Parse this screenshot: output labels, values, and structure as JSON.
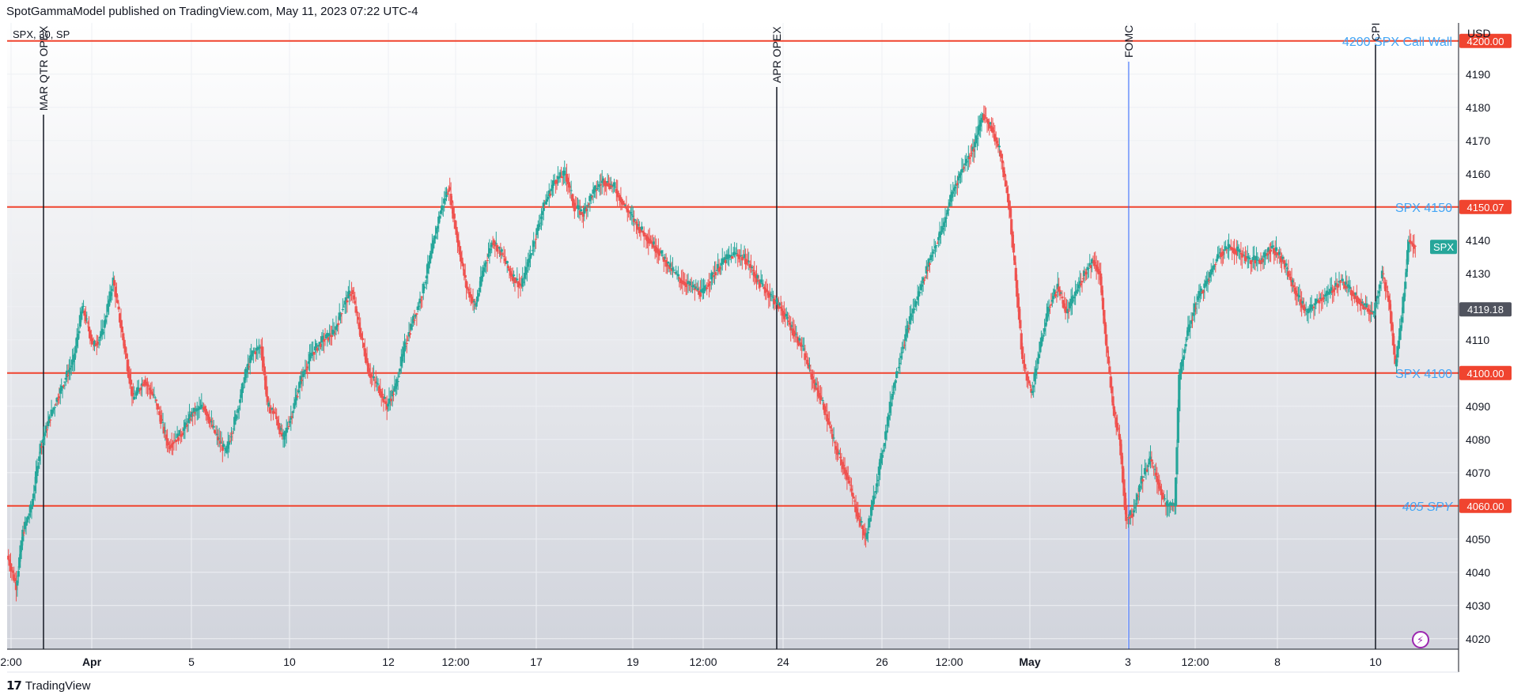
{
  "header": {
    "published": "SpotGammaModel published on TradingView.com, May 11, 2023 07:22 UTC-4"
  },
  "legend": {
    "symbol": "SPX, 30, SP"
  },
  "footer": {
    "brand": "TradingView"
  },
  "colors": {
    "up": "#26a69a",
    "down": "#ef5350",
    "level": "#f0442f",
    "label_blue": "#2196f3",
    "fomc": "#2962ff"
  },
  "chart_data": {
    "type": "candlestick",
    "ylabel": "USD",
    "ylim": [
      4015,
      4203
    ],
    "y_ticks": [
      4020,
      4030,
      4040,
      4050,
      4060,
      4070,
      4080,
      4090,
      4100,
      4110,
      4120,
      4130,
      4140,
      4150,
      4160,
      4170,
      4180,
      4190
    ],
    "x_ticks": [
      "2:00",
      "Apr",
      "5",
      "10",
      "12",
      "12:00",
      "17",
      "19",
      "12:00",
      "24",
      "26",
      "12:00",
      "May",
      "3",
      "12:00",
      "8",
      "10"
    ],
    "current_price": {
      "label": "SPX",
      "value": 4138
    },
    "crosshair_price": "4119.18",
    "horizontal_levels": [
      {
        "label": "4200 SPX Call Wall",
        "value": 4200,
        "badge": "4200.00"
      },
      {
        "label": "SPX 4150",
        "value": 4150,
        "badge": "4150.07"
      },
      {
        "label": "SPX 4100",
        "value": 4100,
        "badge": "4100.00"
      },
      {
        "label": "405 SPY",
        "value": 4060,
        "badge": "4060.00"
      }
    ],
    "vertical_markers": [
      {
        "label": "MAR QTR OPEX",
        "color": "black"
      },
      {
        "label": "APR OPEX",
        "color": "black"
      },
      {
        "label": "FOMC",
        "color": "blue"
      },
      {
        "label": "CPI",
        "color": "black"
      }
    ],
    "path_points": [
      [
        0,
        4045
      ],
      [
        8,
        4036
      ],
      [
        14,
        4052
      ],
      [
        22,
        4060
      ],
      [
        30,
        4078
      ],
      [
        40,
        4088
      ],
      [
        52,
        4098
      ],
      [
        60,
        4104
      ],
      [
        68,
        4120
      ],
      [
        78,
        4108
      ],
      [
        86,
        4112
      ],
      [
        96,
        4128
      ],
      [
        104,
        4112
      ],
      [
        114,
        4092
      ],
      [
        124,
        4098
      ],
      [
        134,
        4092
      ],
      [
        146,
        4078
      ],
      [
        158,
        4082
      ],
      [
        168,
        4088
      ],
      [
        178,
        4090
      ],
      [
        188,
        4082
      ],
      [
        198,
        4076
      ],
      [
        208,
        4088
      ],
      [
        216,
        4100
      ],
      [
        222,
        4106
      ],
      [
        230,
        4108
      ],
      [
        236,
        4090
      ],
      [
        242,
        4088
      ],
      [
        250,
        4080
      ],
      [
        258,
        4088
      ],
      [
        266,
        4098
      ],
      [
        276,
        4106
      ],
      [
        286,
        4110
      ],
      [
        296,
        4112
      ],
      [
        304,
        4120
      ],
      [
        312,
        4125
      ],
      [
        320,
        4112
      ],
      [
        328,
        4100
      ],
      [
        336,
        4096
      ],
      [
        344,
        4090
      ],
      [
        352,
        4096
      ],
      [
        360,
        4108
      ],
      [
        368,
        4116
      ],
      [
        376,
        4124
      ],
      [
        384,
        4136
      ],
      [
        392,
        4148
      ],
      [
        400,
        4156
      ],
      [
        408,
        4140
      ],
      [
        416,
        4126
      ],
      [
        424,
        4120
      ],
      [
        432,
        4132
      ],
      [
        440,
        4140
      ],
      [
        448,
        4136
      ],
      [
        456,
        4130
      ],
      [
        466,
        4126
      ],
      [
        476,
        4138
      ],
      [
        486,
        4150
      ],
      [
        496,
        4158
      ],
      [
        506,
        4160
      ],
      [
        514,
        4150
      ],
      [
        522,
        4148
      ],
      [
        530,
        4154
      ],
      [
        540,
        4158
      ],
      [
        550,
        4156
      ],
      [
        560,
        4150
      ],
      [
        572,
        4144
      ],
      [
        582,
        4140
      ],
      [
        592,
        4136
      ],
      [
        600,
        4132
      ],
      [
        610,
        4128
      ],
      [
        620,
        4126
      ],
      [
        630,
        4124
      ],
      [
        640,
        4130
      ],
      [
        650,
        4134
      ],
      [
        660,
        4136
      ],
      [
        670,
        4134
      ],
      [
        680,
        4128
      ],
      [
        690,
        4124
      ],
      [
        700,
        4120
      ],
      [
        710,
        4114
      ],
      [
        720,
        4108
      ],
      [
        730,
        4098
      ],
      [
        740,
        4090
      ],
      [
        750,
        4078
      ],
      [
        760,
        4070
      ],
      [
        770,
        4058
      ],
      [
        778,
        4050
      ],
      [
        786,
        4064
      ],
      [
        794,
        4078
      ],
      [
        802,
        4094
      ],
      [
        810,
        4106
      ],
      [
        818,
        4116
      ],
      [
        828,
        4126
      ],
      [
        838,
        4136
      ],
      [
        848,
        4144
      ],
      [
        856,
        4154
      ],
      [
        866,
        4162
      ],
      [
        876,
        4168
      ],
      [
        884,
        4178
      ],
      [
        892,
        4174
      ],
      [
        900,
        4166
      ],
      [
        908,
        4150
      ],
      [
        914,
        4128
      ],
      [
        920,
        4104
      ],
      [
        928,
        4094
      ],
      [
        936,
        4108
      ],
      [
        944,
        4120
      ],
      [
        952,
        4126
      ],
      [
        960,
        4118
      ],
      [
        968,
        4124
      ],
      [
        976,
        4130
      ],
      [
        984,
        4134
      ],
      [
        990,
        4130
      ],
      [
        996,
        4108
      ],
      [
        1002,
        4090
      ],
      [
        1008,
        4080
      ],
      [
        1014,
        4056
      ],
      [
        1020,
        4058
      ],
      [
        1028,
        4068
      ],
      [
        1036,
        4074
      ],
      [
        1044,
        4066
      ],
      [
        1050,
        4060
      ],
      [
        1058,
        4060
      ],
      [
        1062,
        4098
      ],
      [
        1068,
        4110
      ],
      [
        1078,
        4122
      ],
      [
        1088,
        4128
      ],
      [
        1098,
        4136
      ],
      [
        1108,
        4138
      ],
      [
        1118,
        4136
      ],
      [
        1126,
        4134
      ],
      [
        1136,
        4134
      ],
      [
        1146,
        4138
      ],
      [
        1156,
        4134
      ],
      [
        1168,
        4124
      ],
      [
        1178,
        4118
      ],
      [
        1188,
        4122
      ],
      [
        1198,
        4124
      ],
      [
        1208,
        4128
      ],
      [
        1220,
        4124
      ],
      [
        1230,
        4120
      ],
      [
        1238,
        4118
      ],
      [
        1246,
        4130
      ],
      [
        1252,
        4122
      ],
      [
        1258,
        4102
      ],
      [
        1264,
        4118
      ],
      [
        1270,
        4140
      ],
      [
        1276,
        4138
      ]
    ]
  }
}
